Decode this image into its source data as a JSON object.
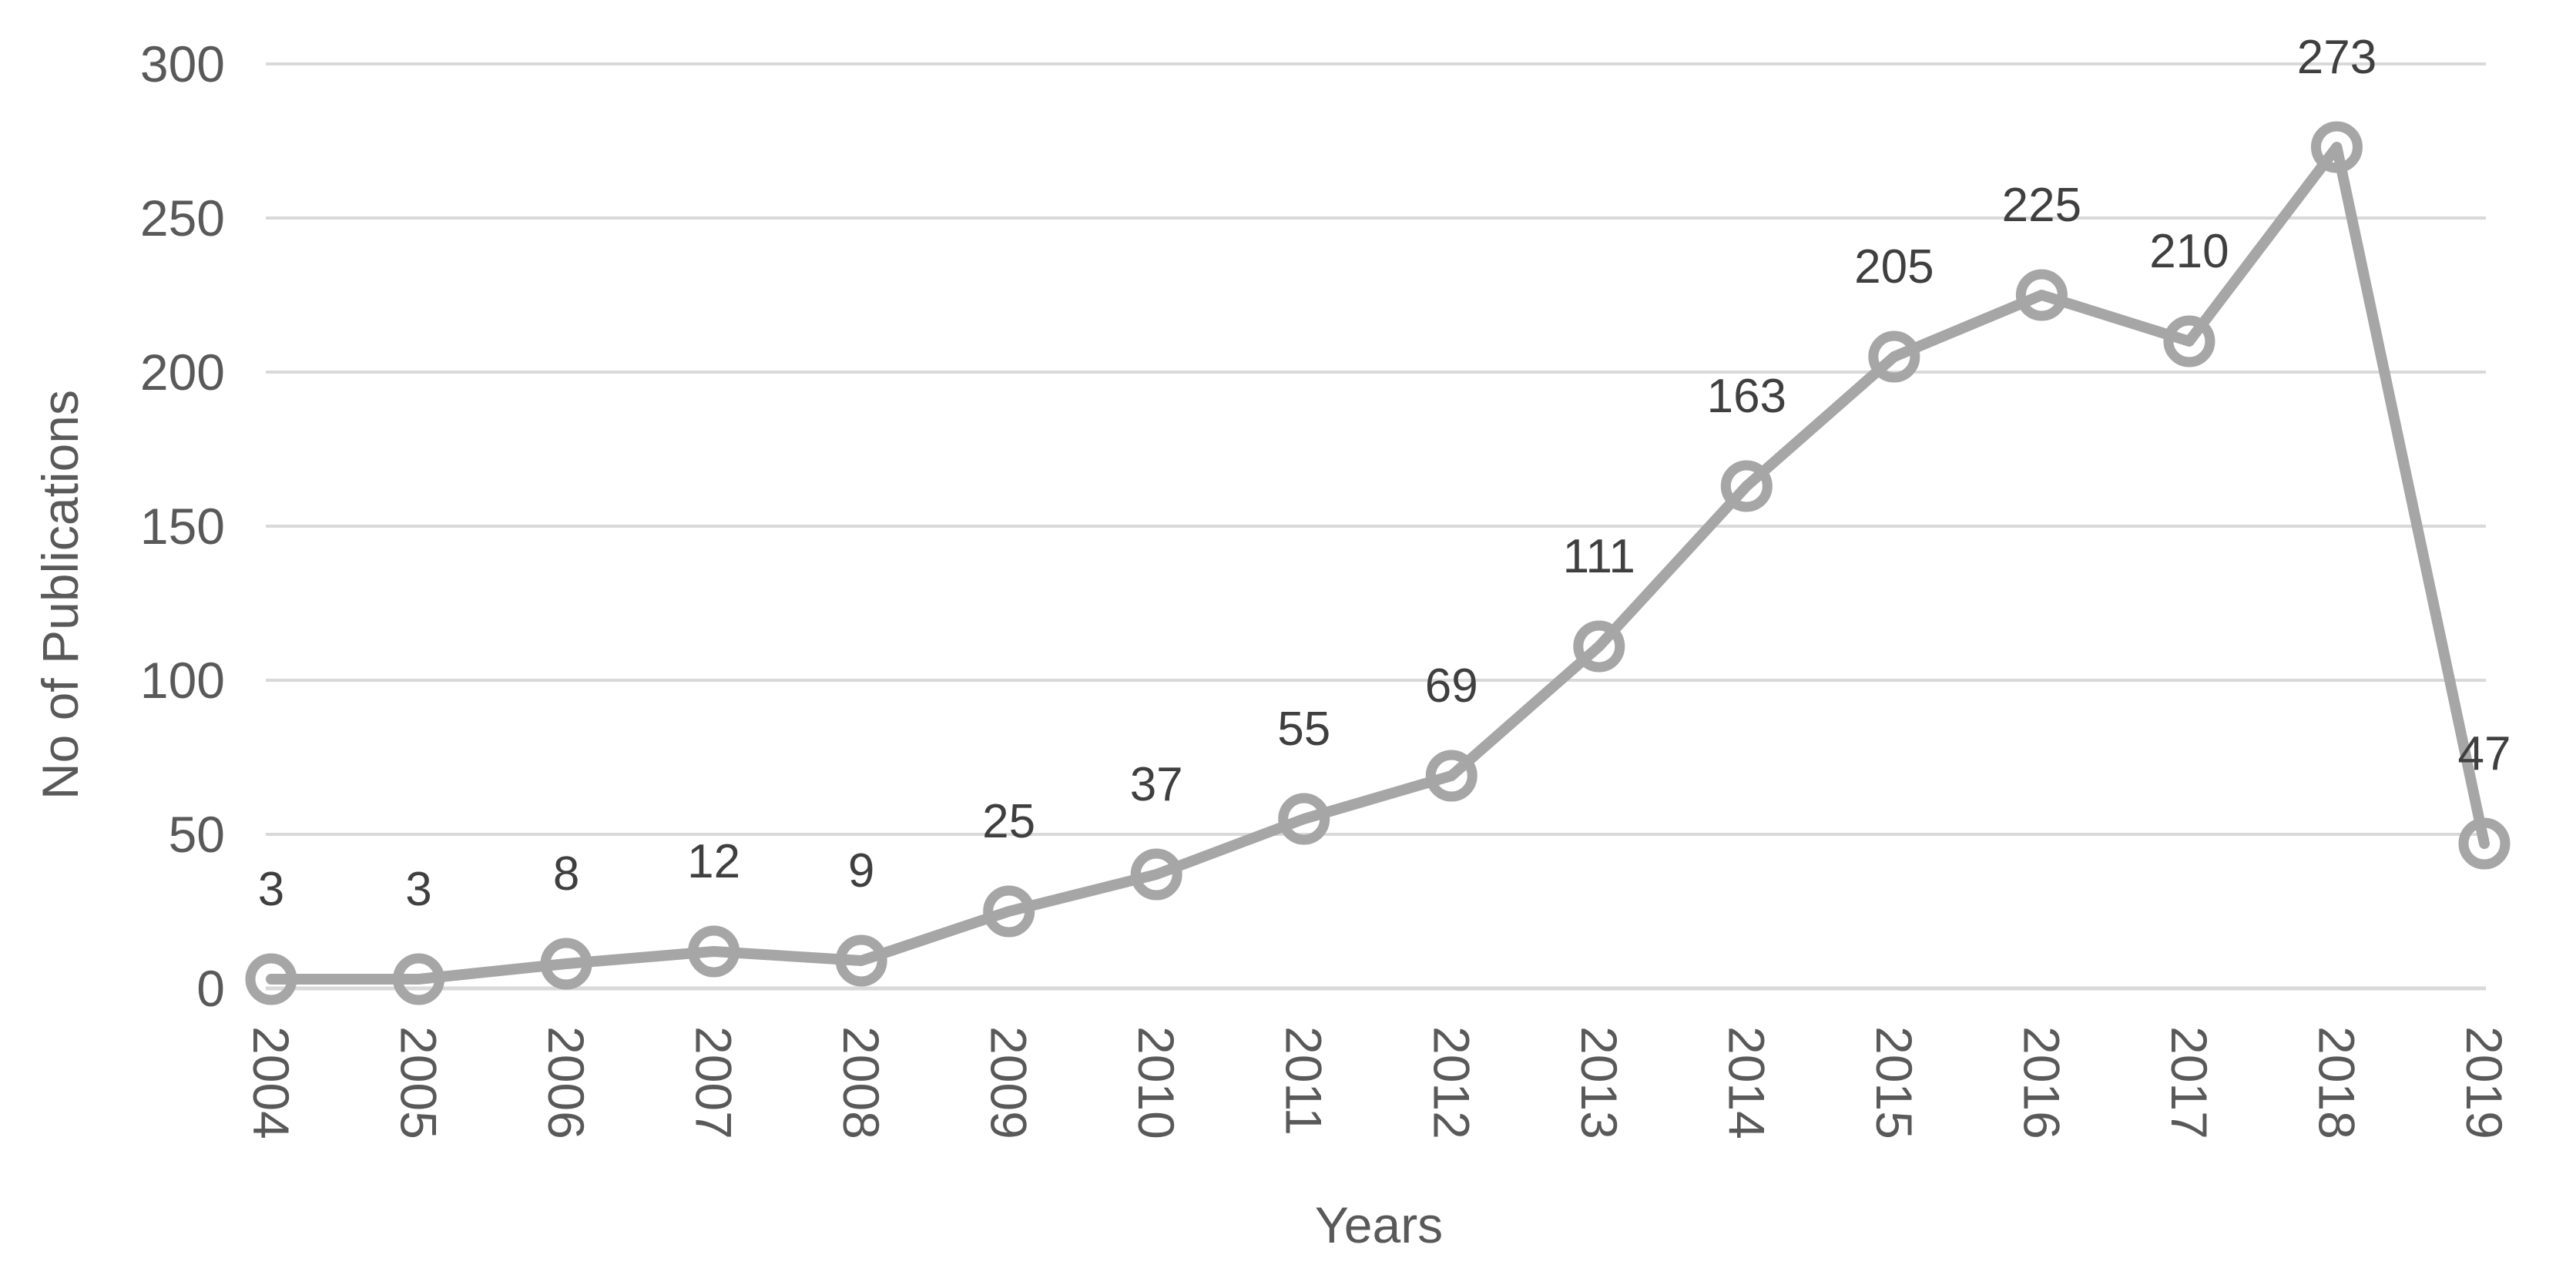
{
  "chart_data": {
    "type": "line",
    "x": [
      "2004",
      "2005",
      "2006",
      "2007",
      "2008",
      "2009",
      "2010",
      "2011",
      "2012",
      "2013",
      "2014",
      "2015",
      "2016",
      "2017",
      "2018",
      "2019"
    ],
    "series": [
      {
        "name": "No of Publications",
        "values": [
          3,
          3,
          8,
          12,
          9,
          25,
          37,
          55,
          69,
          111,
          163,
          205,
          225,
          210,
          273,
          47
        ]
      }
    ],
    "data_labels": [
      "3",
      "3",
      "8",
      "12",
      "9",
      "25",
      "37",
      "55",
      "69",
      "111",
      "163",
      "205",
      "225",
      "210",
      "273",
      "47"
    ],
    "xlabel": "Years",
    "ylabel": "No of Publications",
    "ylim": [
      0,
      300
    ],
    "yticks": [
      0,
      50,
      100,
      150,
      200,
      250,
      300
    ],
    "grid": true,
    "legend": "none",
    "marker": "open-circle"
  },
  "styles": {
    "background": "#ffffff",
    "line_color": "#a6a6a6",
    "marker_stroke": "#a6a6a6",
    "gridline_color": "#d9d9d9",
    "axis_line_color": "#d9d9d9",
    "data_label_color": "#3f3f3f",
    "tick_label_color": "#595959",
    "axis_title_color": "#595959"
  }
}
